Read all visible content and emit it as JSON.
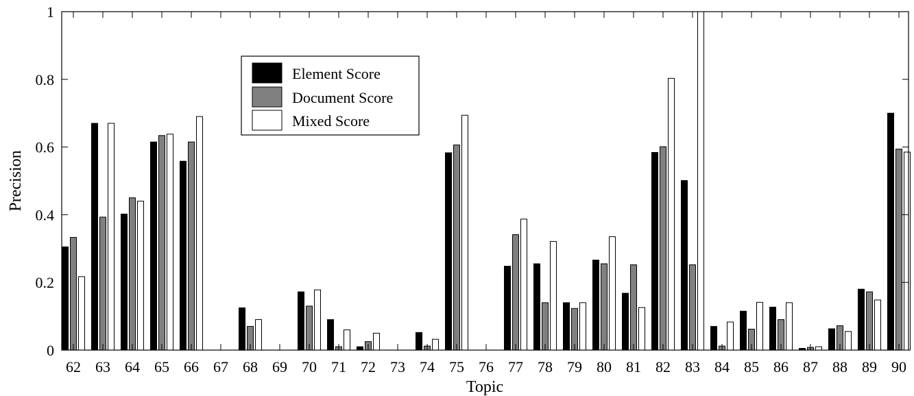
{
  "chart_data": {
    "type": "bar",
    "xlabel": "Topic",
    "ylabel": "Precision",
    "ylim": [
      0,
      1
    ],
    "yticks": [
      "0",
      "0.2",
      "0.4",
      "0.6",
      "0.8",
      "1"
    ],
    "grid": false,
    "legend_position": "upper-left",
    "categories": [
      "62",
      "63",
      "64",
      "65",
      "66",
      "67",
      "68",
      "69",
      "70",
      "71",
      "72",
      "73",
      "74",
      "75",
      "76",
      "77",
      "78",
      "79",
      "80",
      "81",
      "82",
      "83",
      "84",
      "85",
      "86",
      "87",
      "88",
      "89",
      "90"
    ],
    "series": [
      {
        "name": "Element Score",
        "color": "#000000",
        "values": [
          0.305,
          0.67,
          0.402,
          0.615,
          0.558,
          0,
          0.125,
          0,
          0.172,
          0.09,
          0.01,
          0,
          0.052,
          0.583,
          0,
          0.248,
          0.255,
          0.14,
          0.266,
          0.168,
          0.584,
          0.501,
          0.07,
          0.115,
          0.127,
          0.005,
          0.063,
          0.18,
          0.7
        ]
      },
      {
        "name": "Document Score",
        "color": "#808080",
        "values": [
          0.333,
          0.393,
          0.45,
          0.634,
          0.615,
          0,
          0.07,
          0,
          0.13,
          0.01,
          0.025,
          0,
          0.012,
          0.606,
          0,
          0.341,
          0.14,
          0.123,
          0.255,
          0.252,
          0.601,
          0.252,
          0.012,
          0.062,
          0.09,
          0.008,
          0.072,
          0.172,
          0.594
        ]
      },
      {
        "name": "Mixed Score",
        "color": "#ffffff",
        "values": [
          0.217,
          0.67,
          0.44,
          0.638,
          0.69,
          0,
          0.09,
          0,
          0.178,
          0.06,
          0.05,
          0,
          0.032,
          0.694,
          0,
          0.387,
          0.321,
          0.14,
          0.335,
          0.126,
          0.803,
          1.0,
          0.083,
          0.141,
          0.14,
          0.01,
          0.055,
          0.148,
          0.585
        ]
      }
    ]
  }
}
